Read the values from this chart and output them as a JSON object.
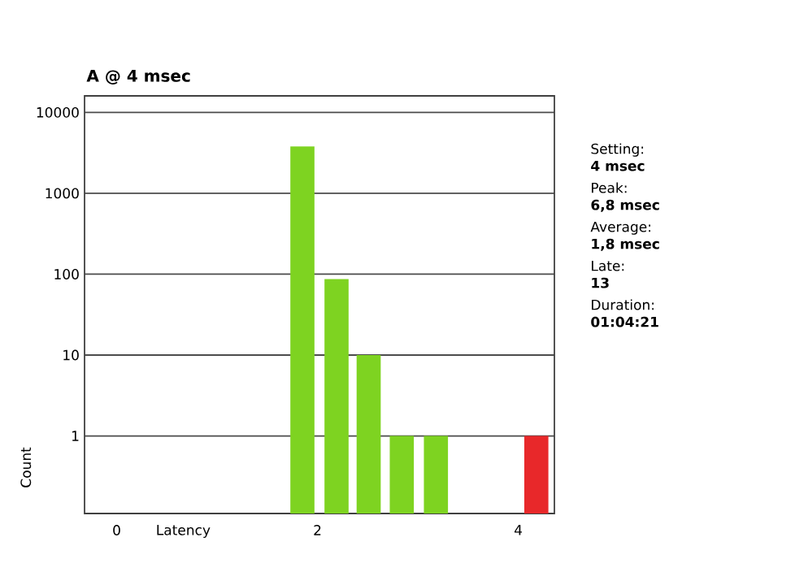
{
  "chart_data": {
    "type": "bar",
    "title": "A @ 4 msec",
    "xlabel": "Latency",
    "ylabel": "Count",
    "x": [
      1.85,
      2.19,
      2.51,
      2.84,
      3.18,
      4.18
    ],
    "values": [
      3800,
      87,
      10,
      1,
      1,
      1
    ],
    "colors": [
      "#7ed321",
      "#7ed321",
      "#7ed321",
      "#7ed321",
      "#7ed321",
      "#e8282a"
    ],
    "xlim": [
      -0.32,
      4.36
    ],
    "xticks": [
      0,
      2,
      4
    ],
    "ylim": [
      0.11,
      16000
    ],
    "yticks": [
      1,
      10,
      100,
      1000,
      10000
    ],
    "log": true,
    "grid": "y",
    "annotations": [
      "Setting:",
      "4 msec",
      "Peak:",
      "6,8 msec",
      "Average:",
      "1,8 msec",
      "Late:",
      "13",
      "Duration:",
      "01:04:21"
    ]
  }
}
